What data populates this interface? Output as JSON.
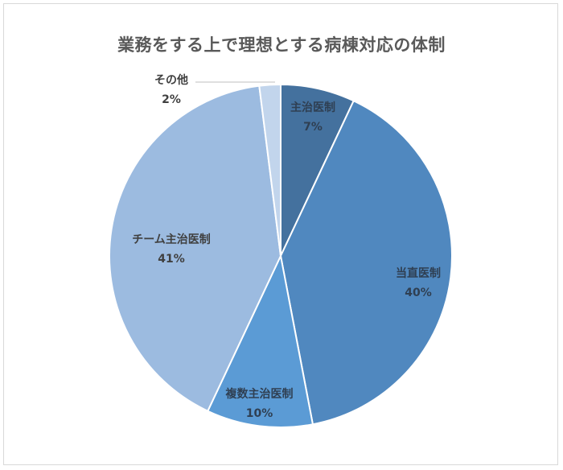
{
  "chart_data": {
    "type": "pie",
    "title": "業務をする上で理想とする病棟対応の体制",
    "categories": [
      "主治医制",
      "当直医制",
      "複数主治医制",
      "チーム主治医制",
      "その他"
    ],
    "values": [
      7,
      40,
      10,
      41,
      2
    ],
    "unit": "%",
    "labels": [
      "7%",
      "40%",
      "10%",
      "41%",
      "2%"
    ],
    "colors": [
      "#44719e",
      "#5088bf",
      "#5b9bd5",
      "#9cbbe0",
      "#c2d5ec"
    ],
    "start_angle": "12 o'clock",
    "direction": "clockwise",
    "legend": "none (data labels on slices)"
  },
  "slices": [
    {
      "name": "主治医制",
      "pct": "7%"
    },
    {
      "name": "当直医制",
      "pct": "40%"
    },
    {
      "name": "複数主治医制",
      "pct": "10%"
    },
    {
      "name": "チーム主治医制",
      "pct": "41%"
    },
    {
      "name": "その他",
      "pct": "2%"
    }
  ]
}
